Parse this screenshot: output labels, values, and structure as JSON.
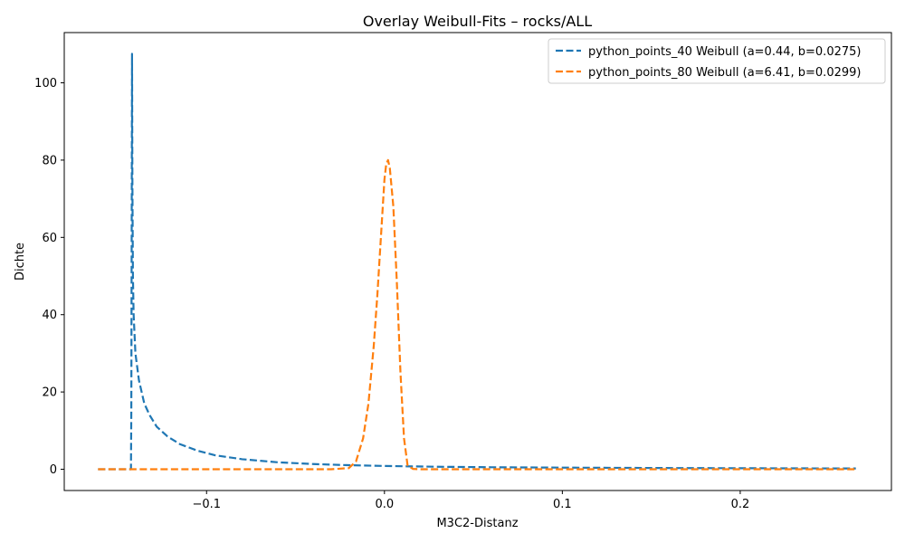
{
  "chart_data": {
    "type": "line",
    "title": "Overlay Weibull-Fits – rocks/ALL",
    "xlabel": "M3C2-Distanz",
    "ylabel": "Dichte",
    "xlim": [
      -0.18,
      0.285
    ],
    "ylim": [
      -5.5,
      113
    ],
    "xticks": [
      -0.1,
      0.0,
      0.1,
      0.2
    ],
    "xtick_labels": [
      "−0.1",
      "0.0",
      "0.1",
      "0.2"
    ],
    "yticks": [
      0,
      20,
      40,
      60,
      80,
      100
    ],
    "ytick_labels": [
      "0",
      "20",
      "40",
      "60",
      "80",
      "100"
    ],
    "grid": false,
    "legend_position": "top-right",
    "series": [
      {
        "name": "python_points_40 Weibull (a=0.44, b=0.0275)",
        "color": "#1f77b4",
        "dash": "dashed",
        "points": [
          [
            -0.161,
            0
          ],
          [
            -0.1425,
            0
          ],
          [
            -0.1423,
            15
          ],
          [
            -0.1421,
            60
          ],
          [
            -0.1419,
            107.5
          ],
          [
            -0.1417,
            75
          ],
          [
            -0.1414,
            50
          ],
          [
            -0.141,
            40
          ],
          [
            -0.14,
            30
          ],
          [
            -0.138,
            23
          ],
          [
            -0.135,
            17
          ],
          [
            -0.132,
            14
          ],
          [
            -0.128,
            11
          ],
          [
            -0.122,
            8.5
          ],
          [
            -0.115,
            6.5
          ],
          [
            -0.105,
            4.8
          ],
          [
            -0.095,
            3.6
          ],
          [
            -0.08,
            2.6
          ],
          [
            -0.06,
            1.8
          ],
          [
            -0.04,
            1.35
          ],
          [
            -0.02,
            1.05
          ],
          [
            0.0,
            0.85
          ],
          [
            0.03,
            0.65
          ],
          [
            0.06,
            0.52
          ],
          [
            0.1,
            0.42
          ],
          [
            0.15,
            0.33
          ],
          [
            0.2,
            0.27
          ],
          [
            0.265,
            0.2
          ]
        ]
      },
      {
        "name": "python_points_80 Weibull (a=6.41, b=0.0299)",
        "color": "#ff7f0e",
        "dash": "dashed",
        "points": [
          [
            -0.161,
            0
          ],
          [
            -0.03,
            0
          ],
          [
            -0.02,
            0.3
          ],
          [
            -0.016,
            2
          ],
          [
            -0.012,
            8
          ],
          [
            -0.009,
            17
          ],
          [
            -0.006,
            32
          ],
          [
            -0.004,
            45
          ],
          [
            -0.002,
            60
          ],
          [
            0.0,
            75
          ],
          [
            0.001,
            79
          ],
          [
            0.002,
            80
          ],
          [
            0.003,
            78
          ],
          [
            0.005,
            68
          ],
          [
            0.007,
            48
          ],
          [
            0.009,
            25
          ],
          [
            0.011,
            8
          ],
          [
            0.013,
            1
          ],
          [
            0.016,
            0.1
          ],
          [
            0.02,
            0
          ],
          [
            0.265,
            0
          ]
        ]
      }
    ]
  }
}
